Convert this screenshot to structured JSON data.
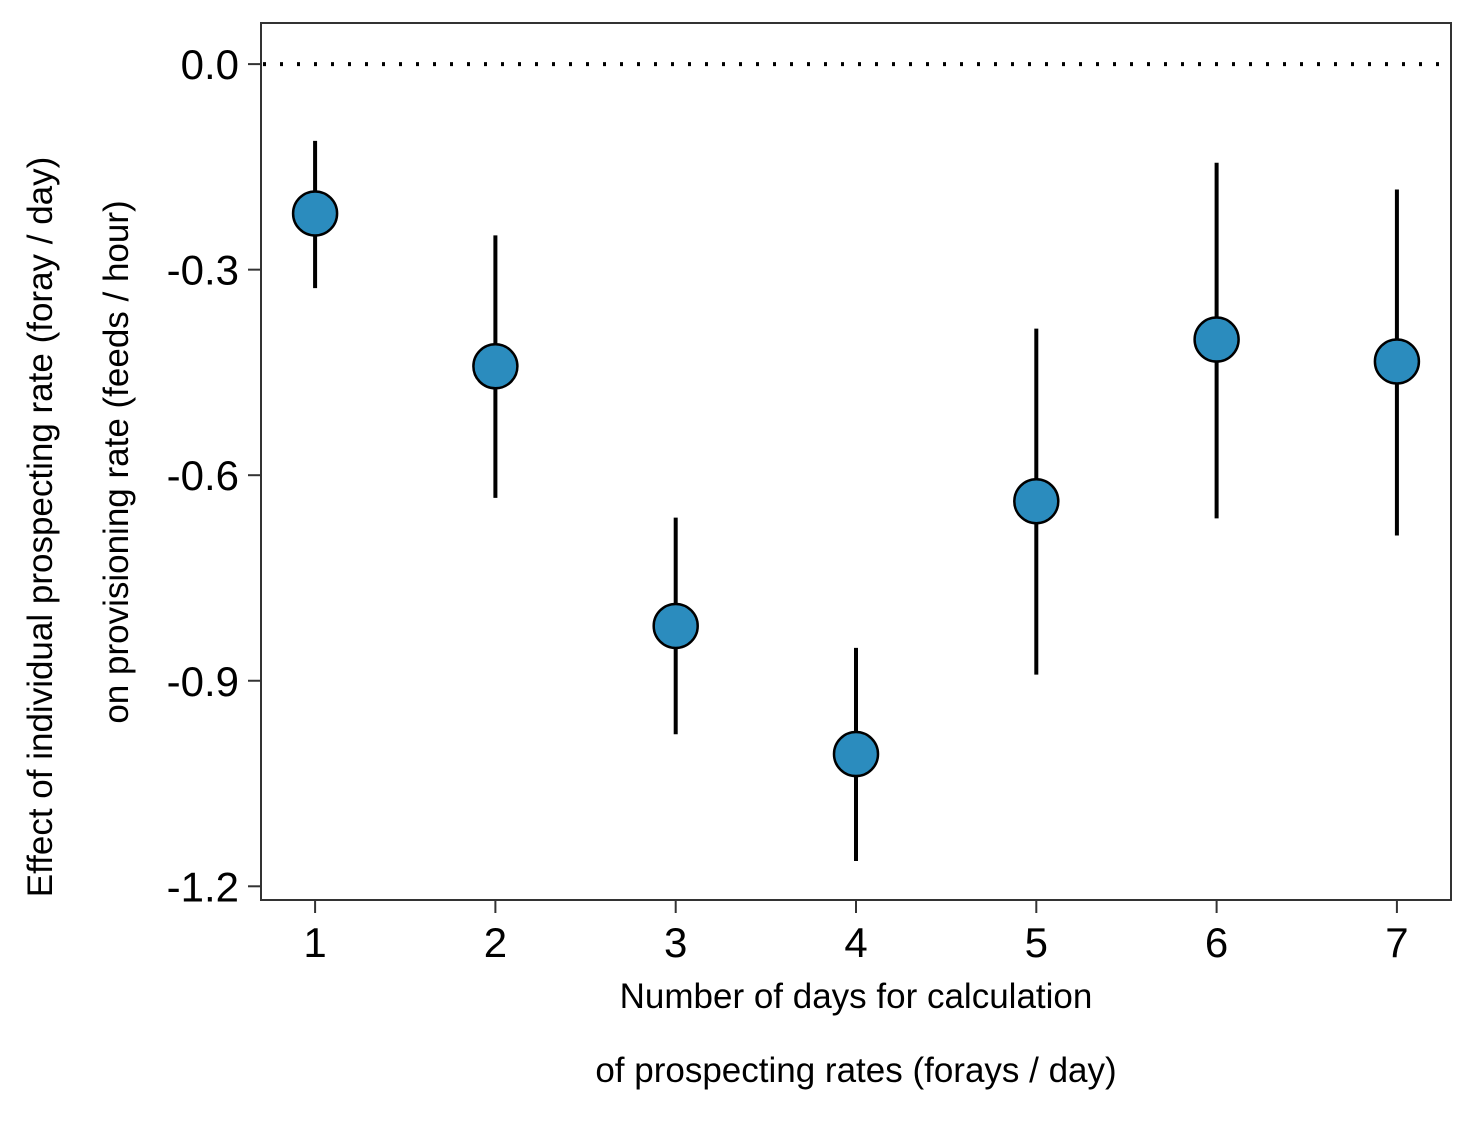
{
  "chart_data": {
    "type": "scatter",
    "xlabel_lines": [
      "Number of days for calculation",
      "of prospecting rates (forays / day)"
    ],
    "ylabel_lines": [
      "Effect of individual prospecting rate (foray / day)",
      "on provisioning rate (feeds / hour)"
    ],
    "x_ticks": [
      1,
      2,
      3,
      4,
      5,
      6,
      7
    ],
    "x_tick_labels": [
      "1",
      "2",
      "3",
      "4",
      "5",
      "6",
      "7"
    ],
    "y_ticks": [
      0.0,
      -0.3,
      -0.6,
      -0.9,
      -1.2
    ],
    "y_tick_labels": [
      "0.0",
      "-0.3",
      "-0.6",
      "-0.9",
      "-1.2"
    ],
    "xlim": [
      0.7,
      7.3
    ],
    "ylim": [
      -1.22,
      0.06
    ],
    "reference_line": {
      "y": 0.0,
      "style": "dotted"
    },
    "points": [
      {
        "x": 1,
        "y": -0.218,
        "lower": -0.327,
        "upper": -0.112
      },
      {
        "x": 2,
        "y": -0.441,
        "lower": -0.633,
        "upper": -0.25
      },
      {
        "x": 3,
        "y": -0.82,
        "lower": -0.978,
        "upper": -0.662
      },
      {
        "x": 4,
        "y": -1.007,
        "lower": -1.163,
        "upper": -0.852
      },
      {
        "x": 5,
        "y": -0.638,
        "lower": -0.891,
        "upper": -0.386
      },
      {
        "x": 6,
        "y": -0.402,
        "lower": -0.663,
        "upper": -0.144
      },
      {
        "x": 7,
        "y": -0.434,
        "lower": -0.688,
        "upper": -0.183
      }
    ],
    "point_fill": "#2b8cbe",
    "point_stroke": "#000000",
    "grid": false,
    "legend": "none"
  }
}
